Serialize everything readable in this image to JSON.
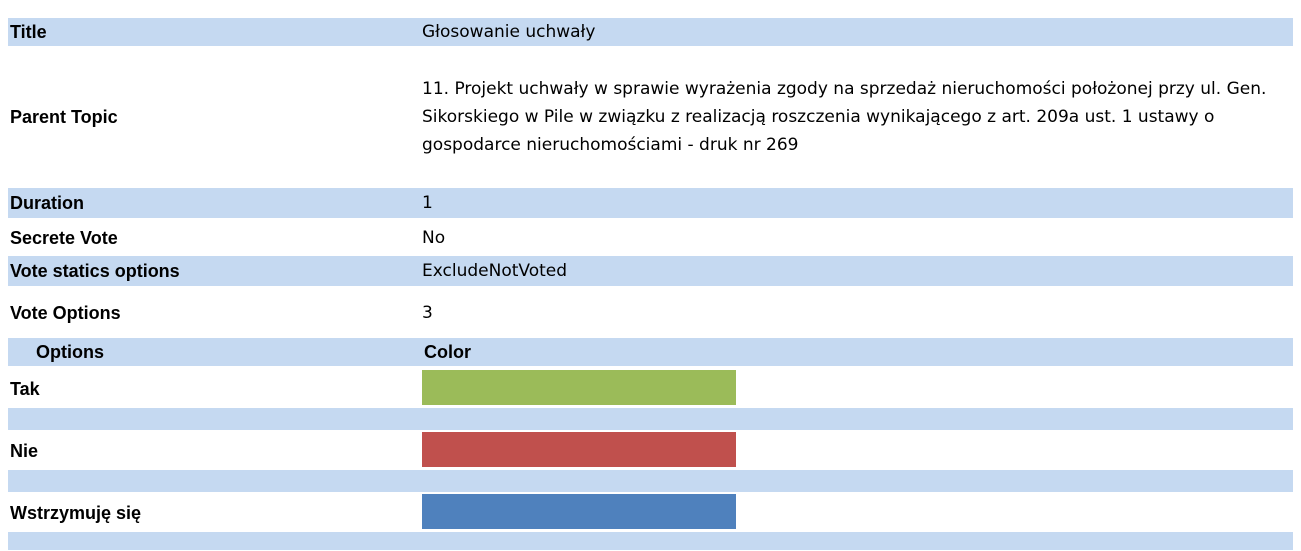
{
  "rows": [
    {
      "label": "Title",
      "value": "Głosowanie uchwały"
    },
    {
      "label": "Parent Topic",
      "value": "11. Projekt uchwały w sprawie wyrażenia zgody na sprzedaż nieruchomości położonej przy ul. Gen. Sikorskiego w Pile w związku z realizacją roszczenia wynikającego z art. 209a ust. 1 ustawy o gospodarce nieruchomościami - druk nr 269"
    },
    {
      "label": "Duration",
      "value": "1"
    },
    {
      "label": "Secrete Vote",
      "value": "No"
    },
    {
      "label": "Vote statics options",
      "value": "ExcludeNotVoted"
    },
    {
      "label": "Vote Options",
      "value": "3"
    }
  ],
  "options_header": {
    "name": "Options",
    "color": "Color"
  },
  "options": [
    {
      "name": "Tak",
      "color": "#9bbb59"
    },
    {
      "name": "Nie",
      "color": "#c0504d"
    },
    {
      "name": "Wstrzymuję się",
      "color": "#4f81bd"
    }
  ]
}
